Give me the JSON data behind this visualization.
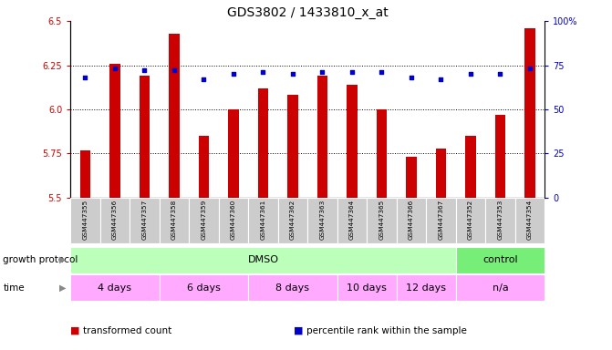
{
  "title": "GDS3802 / 1433810_x_at",
  "samples": [
    "GSM447355",
    "GSM447356",
    "GSM447357",
    "GSM447358",
    "GSM447359",
    "GSM447360",
    "GSM447361",
    "GSM447362",
    "GSM447363",
    "GSM447364",
    "GSM447365",
    "GSM447366",
    "GSM447367",
    "GSM447352",
    "GSM447353",
    "GSM447354"
  ],
  "bar_values": [
    5.77,
    6.26,
    6.19,
    6.43,
    5.85,
    6.0,
    6.12,
    6.08,
    6.19,
    6.14,
    6.0,
    5.73,
    5.78,
    5.85,
    5.97,
    6.46
  ],
  "percentile_values": [
    68,
    73,
    72,
    72,
    67,
    70,
    71,
    70,
    71,
    71,
    71,
    68,
    67,
    70,
    70,
    73
  ],
  "ylim_left": [
    5.5,
    6.5
  ],
  "ylim_right": [
    0,
    100
  ],
  "yticks_left": [
    5.5,
    5.75,
    6.0,
    6.25,
    6.5
  ],
  "yticks_right": [
    0,
    25,
    50,
    75,
    100
  ],
  "bar_color": "#cc0000",
  "percentile_color": "#0000cc",
  "grid_color": "#000000",
  "left_tick_color": "#cc0000",
  "right_tick_color": "#0000cc",
  "bg_color": "#ffffff",
  "sample_bg": "#cccccc",
  "growth_protocol_row": {
    "label": "growth protocol",
    "groups": [
      {
        "text": "DMSO",
        "start": 0,
        "end": 13,
        "color": "#bbffbb"
      },
      {
        "text": "control",
        "start": 13,
        "end": 16,
        "color": "#77ee77"
      }
    ]
  },
  "time_row": {
    "label": "time",
    "groups": [
      {
        "text": "4 days",
        "start": 0,
        "end": 3,
        "color": "#ffaaff"
      },
      {
        "text": "6 days",
        "start": 3,
        "end": 6,
        "color": "#ffaaff"
      },
      {
        "text": "8 days",
        "start": 6,
        "end": 9,
        "color": "#ffaaff"
      },
      {
        "text": "10 days",
        "start": 9,
        "end": 11,
        "color": "#ffaaff"
      },
      {
        "text": "12 days",
        "start": 11,
        "end": 13,
        "color": "#ffaaff"
      },
      {
        "text": "n/a",
        "start": 13,
        "end": 16,
        "color": "#ffaaff"
      }
    ]
  },
  "legend": [
    {
      "label": "transformed count",
      "color": "#cc0000"
    },
    {
      "label": "percentile rank within the sample",
      "color": "#0000cc"
    }
  ]
}
